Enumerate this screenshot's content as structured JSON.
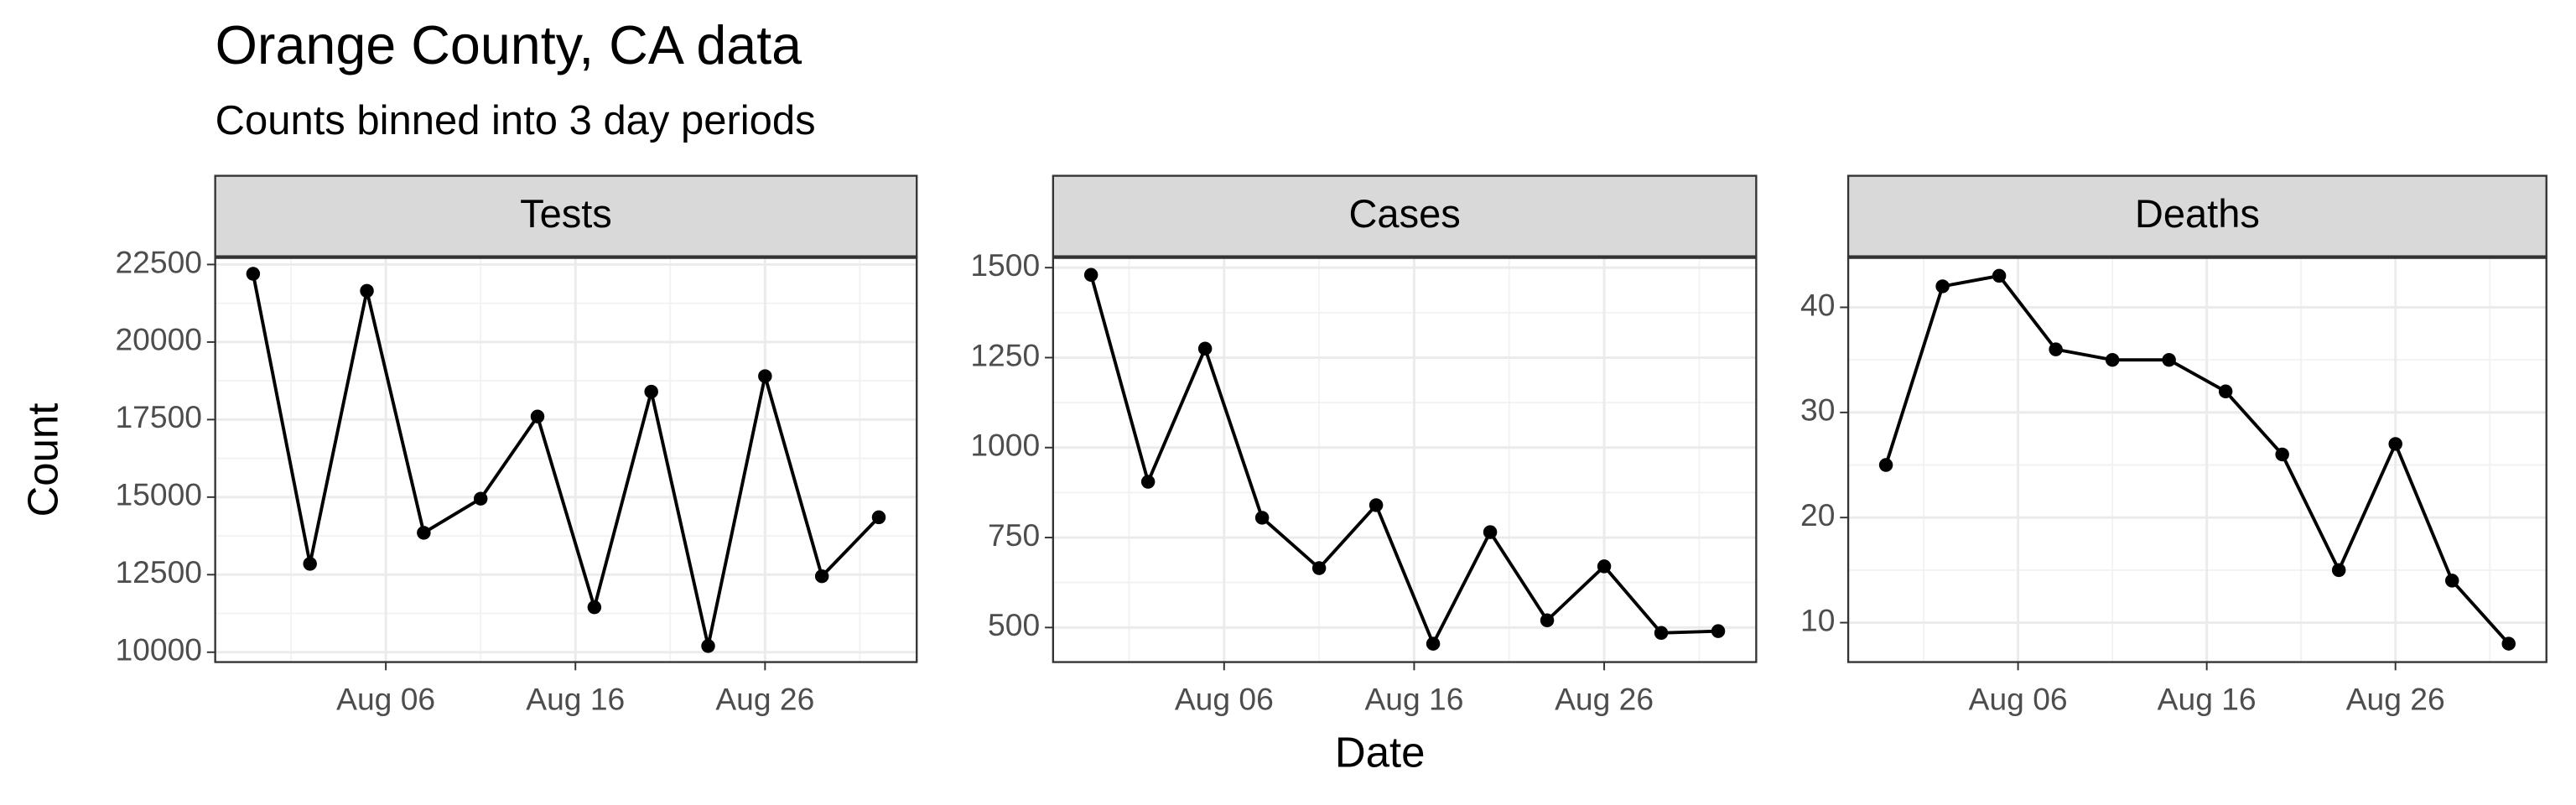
{
  "title": "Orange County, CA data",
  "subtitle": "Counts binned into 3 day periods",
  "x_label": "Date",
  "y_label": "Count",
  "chart_data": [
    {
      "type": "line",
      "title": "Tests",
      "color": "#000000",
      "grid": true,
      "x": [
        "Jul 30",
        "Aug 02",
        "Aug 05",
        "Aug 08",
        "Aug 11",
        "Aug 14",
        "Aug 17",
        "Aug 20",
        "Aug 23",
        "Aug 26",
        "Aug 29",
        "Sep 01"
      ],
      "values": [
        22200,
        12850,
        21650,
        13850,
        14950,
        17600,
        11450,
        18400,
        10200,
        18900,
        12450,
        14350
      ],
      "xlim": [
        "Jul 28",
        "Sep 03"
      ],
      "xticks": [
        "Aug 06",
        "Aug 16",
        "Aug 26"
      ],
      "ylim": [
        9682,
        22712
      ],
      "yticks": [
        10000,
        12500,
        15000,
        17500,
        20000,
        22500
      ]
    },
    {
      "type": "line",
      "title": "Cases",
      "color": "#000000",
      "grid": true,
      "x": [
        "Jul 30",
        "Aug 02",
        "Aug 05",
        "Aug 08",
        "Aug 11",
        "Aug 14",
        "Aug 17",
        "Aug 20",
        "Aug 23",
        "Aug 26",
        "Aug 29",
        "Sep 01"
      ],
      "values": [
        1480,
        905,
        1275,
        805,
        665,
        840,
        455,
        765,
        520,
        670,
        485,
        490
      ],
      "xlim": [
        "Jul 28",
        "Sep 03"
      ],
      "xticks": [
        "Aug 06",
        "Aug 16",
        "Aug 26"
      ],
      "ylim": [
        404,
        1527
      ],
      "yticks": [
        500,
        750,
        1000,
        1250,
        1500
      ]
    },
    {
      "type": "line",
      "title": "Deaths",
      "color": "#000000",
      "grid": true,
      "x": [
        "Jul 30",
        "Aug 02",
        "Aug 05",
        "Aug 08",
        "Aug 11",
        "Aug 14",
        "Aug 17",
        "Aug 20",
        "Aug 23",
        "Aug 26",
        "Aug 29",
        "Sep 01"
      ],
      "values": [
        25,
        42,
        43,
        36,
        35,
        35,
        32,
        26,
        15,
        27,
        14,
        8
      ],
      "xlim": [
        "Jul 28",
        "Sep 03"
      ],
      "xticks": [
        "Aug 06",
        "Aug 16",
        "Aug 26"
      ],
      "ylim": [
        6.25,
        44.7
      ],
      "yticks": [
        10,
        20,
        30,
        40
      ]
    }
  ]
}
